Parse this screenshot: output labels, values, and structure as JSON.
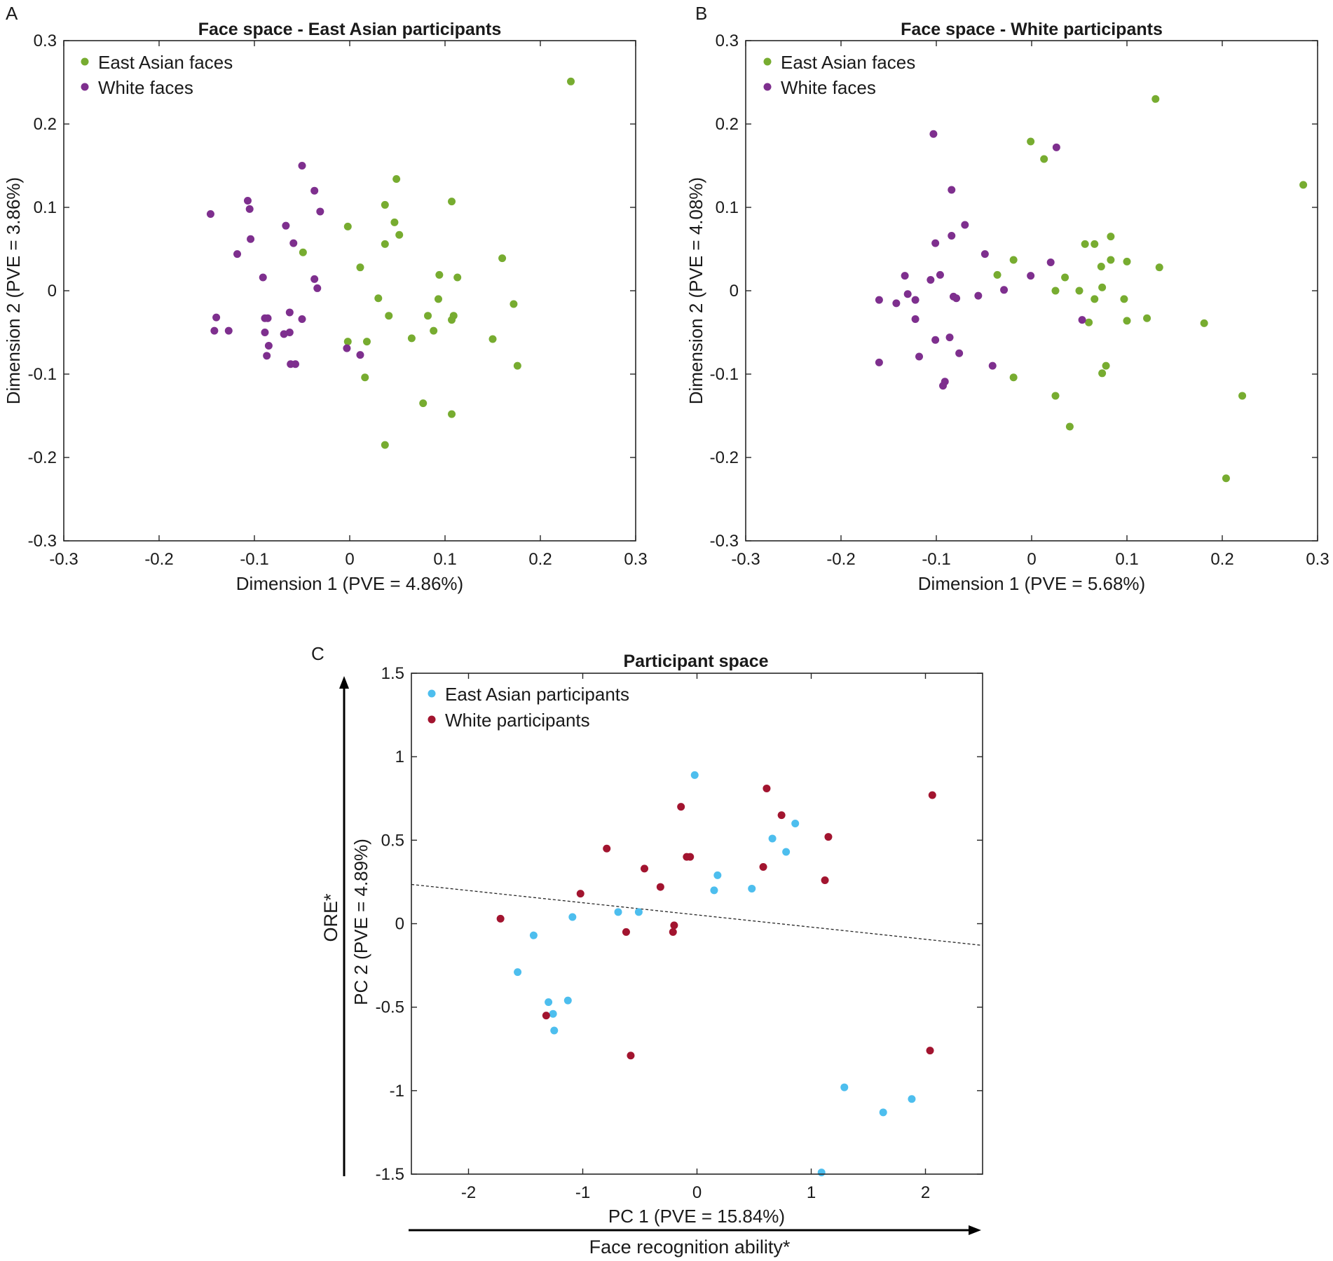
{
  "colors": {
    "east_asian_faces": "#77ac30",
    "white_faces": "#7e2f8e",
    "east_asian_participants": "#4dbeee",
    "white_participants": "#a2142f"
  },
  "chart_data": [
    {
      "panel_label": "A",
      "type": "scatter",
      "title": "Face space - East Asian participants",
      "xlabel": "Dimension 1 (PVE = 4.86%)",
      "ylabel": "Dimension 2 (PVE = 3.86%)",
      "xlim": [
        -0.3,
        0.3
      ],
      "ylim": [
        -0.3,
        0.3
      ],
      "xticks": [
        -0.3,
        -0.2,
        -0.1,
        0,
        0.1,
        0.2,
        0.3
      ],
      "yticks": [
        -0.3,
        -0.2,
        -0.1,
        0,
        0.1,
        0.2,
        0.3
      ],
      "legend_position": "top-left",
      "series": [
        {
          "name": "East Asian faces",
          "color_key": "east_asian_faces",
          "points": [
            [
              0.232,
              0.251
            ],
            [
              0.049,
              0.134
            ],
            [
              0.107,
              0.107
            ],
            [
              0.037,
              0.103
            ],
            [
              0.047,
              0.082
            ],
            [
              -0.002,
              0.077
            ],
            [
              0.052,
              0.067
            ],
            [
              0.037,
              0.056
            ],
            [
              -0.049,
              0.046
            ],
            [
              0.16,
              0.039
            ],
            [
              0.011,
              0.028
            ],
            [
              0.094,
              0.019
            ],
            [
              0.113,
              0.016
            ],
            [
              0.03,
              -0.009
            ],
            [
              0.093,
              -0.01
            ],
            [
              0.172,
              -0.016
            ],
            [
              0.041,
              -0.03
            ],
            [
              0.082,
              -0.03
            ],
            [
              0.109,
              -0.03
            ],
            [
              0.107,
              -0.035
            ],
            [
              0.088,
              -0.048
            ],
            [
              0.065,
              -0.057
            ],
            [
              0.15,
              -0.058
            ],
            [
              -0.002,
              -0.061
            ],
            [
              0.018,
              -0.061
            ],
            [
              0.176,
              -0.09
            ],
            [
              0.016,
              -0.104
            ],
            [
              0.077,
              -0.135
            ],
            [
              0.107,
              -0.148
            ],
            [
              0.037,
              -0.185
            ]
          ]
        },
        {
          "name": "White faces",
          "color_key": "white_faces",
          "points": [
            [
              -0.05,
              0.15
            ],
            [
              -0.037,
              0.12
            ],
            [
              -0.107,
              0.108
            ],
            [
              -0.105,
              0.098
            ],
            [
              -0.031,
              0.095
            ],
            [
              -0.146,
              0.092
            ],
            [
              -0.067,
              0.078
            ],
            [
              -0.104,
              0.062
            ],
            [
              -0.059,
              0.057
            ],
            [
              -0.118,
              0.044
            ],
            [
              -0.091,
              0.016
            ],
            [
              -0.037,
              0.014
            ],
            [
              -0.034,
              0.003
            ],
            [
              -0.063,
              -0.026
            ],
            [
              -0.14,
              -0.032
            ],
            [
              -0.089,
              -0.033
            ],
            [
              -0.086,
              -0.033
            ],
            [
              -0.05,
              -0.034
            ],
            [
              -0.142,
              -0.048
            ],
            [
              -0.127,
              -0.048
            ],
            [
              -0.089,
              -0.05
            ],
            [
              -0.063,
              -0.05
            ],
            [
              -0.069,
              -0.052
            ],
            [
              -0.085,
              -0.066
            ],
            [
              -0.003,
              -0.069
            ],
            [
              0.011,
              -0.077
            ],
            [
              -0.087,
              -0.078
            ],
            [
              -0.062,
              -0.088
            ],
            [
              -0.057,
              -0.088
            ]
          ]
        }
      ]
    },
    {
      "panel_label": "B",
      "type": "scatter",
      "title": "Face space - White participants",
      "xlabel": "Dimension 1 (PVE = 5.68%)",
      "ylabel": "Dimension 2 (PVE = 4.08%)",
      "xlim": [
        -0.3,
        0.3
      ],
      "ylim": [
        -0.3,
        0.3
      ],
      "xticks": [
        -0.3,
        -0.2,
        -0.1,
        0,
        0.1,
        0.2,
        0.3
      ],
      "yticks": [
        -0.3,
        -0.2,
        -0.1,
        0,
        0.1,
        0.2,
        0.3
      ],
      "legend_position": "top-left",
      "series": [
        {
          "name": "East Asian faces",
          "color_key": "east_asian_faces",
          "points": [
            [
              0.13,
              0.23
            ],
            [
              -0.001,
              0.179
            ],
            [
              0.013,
              0.158
            ],
            [
              0.285,
              0.127
            ],
            [
              0.083,
              0.065
            ],
            [
              0.066,
              0.056
            ],
            [
              0.056,
              0.056
            ],
            [
              -0.019,
              0.037
            ],
            [
              0.083,
              0.037
            ],
            [
              0.1,
              0.035
            ],
            [
              0.073,
              0.029
            ],
            [
              0.134,
              0.028
            ],
            [
              -0.036,
              0.019
            ],
            [
              0.035,
              0.016
            ],
            [
              0.074,
              0.004
            ],
            [
              0.025,
              0.0
            ],
            [
              0.05,
              0.0
            ],
            [
              0.066,
              -0.01
            ],
            [
              0.097,
              -0.01
            ],
            [
              0.06,
              -0.038
            ],
            [
              0.1,
              -0.036
            ],
            [
              0.121,
              -0.033
            ],
            [
              0.181,
              -0.039
            ],
            [
              0.078,
              -0.09
            ],
            [
              0.074,
              -0.099
            ],
            [
              -0.019,
              -0.104
            ],
            [
              0.025,
              -0.126
            ],
            [
              0.221,
              -0.126
            ],
            [
              0.04,
              -0.163
            ],
            [
              0.204,
              -0.225
            ]
          ]
        },
        {
          "name": "White faces",
          "color_key": "white_faces",
          "points": [
            [
              -0.103,
              0.188
            ],
            [
              0.026,
              0.172
            ],
            [
              -0.084,
              0.121
            ],
            [
              -0.07,
              0.079
            ],
            [
              -0.084,
              0.066
            ],
            [
              -0.101,
              0.057
            ],
            [
              -0.049,
              0.044
            ],
            [
              0.02,
              0.034
            ],
            [
              -0.133,
              0.018
            ],
            [
              -0.096,
              0.019
            ],
            [
              -0.106,
              0.013
            ],
            [
              -0.001,
              0.018
            ],
            [
              -0.029,
              0.001
            ],
            [
              -0.13,
              -0.004
            ],
            [
              -0.082,
              -0.007
            ],
            [
              -0.056,
              -0.006
            ],
            [
              -0.16,
              -0.011
            ],
            [
              -0.122,
              -0.011
            ],
            [
              -0.142,
              -0.015
            ],
            [
              -0.079,
              -0.009
            ],
            [
              0.053,
              -0.035
            ],
            [
              -0.122,
              -0.034
            ],
            [
              -0.086,
              -0.056
            ],
            [
              -0.101,
              -0.059
            ],
            [
              -0.076,
              -0.075
            ],
            [
              -0.118,
              -0.079
            ],
            [
              -0.16,
              -0.086
            ],
            [
              -0.041,
              -0.09
            ],
            [
              -0.091,
              -0.109
            ],
            [
              -0.093,
              -0.114
            ]
          ]
        }
      ]
    },
    {
      "panel_label": "C",
      "type": "scatter",
      "title": "Participant space",
      "xlabel": "PC 1 (PVE = 15.84%)",
      "ylabel": "PC 2 (PVE = 4.89%)",
      "x_arrow_label": "Face recognition ability*",
      "y_arrow_label": "ORE*",
      "xlim": [
        -2.5,
        2.5
      ],
      "ylim": [
        -1.5,
        1.5
      ],
      "xticks": [
        -2,
        -1,
        0,
        1,
        2
      ],
      "yticks": [
        -1.5,
        -1,
        -0.5,
        0,
        0.5,
        1,
        1.5
      ],
      "legend_position": "top-left",
      "trend_line": {
        "x": [
          -2.5,
          2.5
        ],
        "y": [
          0.235,
          -0.13
        ],
        "style": "dashed"
      },
      "series": [
        {
          "name": "East Asian participants",
          "color_key": "east_asian_participants",
          "points": [
            [
              -0.02,
              0.89
            ],
            [
              0.86,
              0.6
            ],
            [
              0.66,
              0.51
            ],
            [
              0.78,
              0.43
            ],
            [
              0.18,
              0.29
            ],
            [
              0.48,
              0.21
            ],
            [
              0.15,
              0.2
            ],
            [
              -0.69,
              0.07
            ],
            [
              -0.51,
              0.07
            ],
            [
              -1.09,
              0.04
            ],
            [
              -1.43,
              -0.07
            ],
            [
              -1.57,
              -0.29
            ],
            [
              -1.3,
              -0.47
            ],
            [
              -1.13,
              -0.46
            ],
            [
              -1.26,
              -0.54
            ],
            [
              -1.25,
              -0.64
            ],
            [
              1.29,
              -0.98
            ],
            [
              1.63,
              -1.13
            ],
            [
              1.88,
              -1.05
            ],
            [
              1.09,
              -1.49
            ]
          ]
        },
        {
          "name": "White participants",
          "color_key": "white_participants",
          "points": [
            [
              0.61,
              0.81
            ],
            [
              2.06,
              0.77
            ],
            [
              -0.14,
              0.7
            ],
            [
              0.74,
              0.65
            ],
            [
              1.15,
              0.52
            ],
            [
              -0.79,
              0.45
            ],
            [
              -0.09,
              0.4
            ],
            [
              -0.06,
              0.4
            ],
            [
              -0.46,
              0.33
            ],
            [
              0.58,
              0.34
            ],
            [
              1.12,
              0.26
            ],
            [
              -0.32,
              0.22
            ],
            [
              -1.02,
              0.18
            ],
            [
              -1.72,
              0.03
            ],
            [
              -0.2,
              -0.01
            ],
            [
              -0.62,
              -0.05
            ],
            [
              -0.21,
              -0.05
            ],
            [
              -1.32,
              -0.55
            ],
            [
              -0.58,
              -0.79
            ],
            [
              2.04,
              -0.76
            ]
          ]
        }
      ]
    }
  ]
}
